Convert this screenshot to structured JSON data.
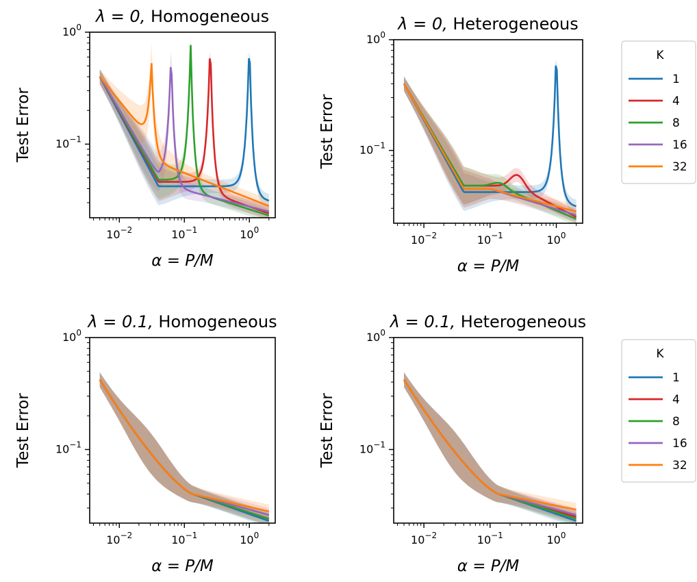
{
  "colors": {
    "K1": "#1f77b4",
    "K4": "#d62728",
    "K8": "#2ca02c",
    "K16": "#9467bd",
    "K32": "#ff7f0e"
  },
  "common": {
    "ylabel": "Test Error",
    "xlabel_main": "α = P/M",
    "xticks": [
      {
        "v": 0.01,
        "base": "10",
        "exp": "−2"
      },
      {
        "v": 0.1,
        "base": "10",
        "exp": "−1"
      },
      {
        "v": 1,
        "base": "10",
        "exp": "0"
      }
    ],
    "yticks": [
      {
        "v": 0.1,
        "base": "10",
        "exp": "−1"
      },
      {
        "v": 1,
        "base": "10",
        "exp": "0"
      }
    ],
    "xlim": [
      0.0035,
      2.5
    ],
    "yscale": "log",
    "xscale": "log"
  },
  "legend": {
    "title": "K",
    "entries": [
      "1",
      "4",
      "8",
      "16",
      "32"
    ]
  },
  "chart_data": [
    {
      "type": "line",
      "id": "p00",
      "title_lambda": "λ = 0,",
      "title_text": "Homogeneous",
      "xlabel": "α = P/M",
      "ylabel": "Test Error",
      "ylim": [
        0.022,
        1.0
      ],
      "series": [
        {
          "name": "1",
          "peak": 1.0,
          "peak_val": 0.88,
          "plateau": 0.042,
          "end": 0.031,
          "color_key": "K1"
        },
        {
          "name": "4",
          "peak": 0.25,
          "peak_val": 0.85,
          "plateau": 0.046,
          "end": 0.024,
          "color_key": "K4"
        },
        {
          "name": "8",
          "peak": 0.125,
          "peak_val": 0.8,
          "plateau": 0.048,
          "end": 0.023,
          "color_key": "K8"
        },
        {
          "name": "16",
          "peak": 0.0625,
          "peak_val": 0.67,
          "plateau": 0.052,
          "end": 0.025,
          "color_key": "K16"
        },
        {
          "name": "32",
          "peak": 0.03125,
          "peak_val": 0.55,
          "plateau": 0.09,
          "end": 0.028,
          "color_key": "K32"
        }
      ]
    },
    {
      "type": "line",
      "id": "p01",
      "title_lambda": "λ = 0,",
      "title_text": "Heterogeneous",
      "xlabel": "α = P/M",
      "ylabel": "Test Error",
      "ylim": [
        0.022,
        1.0
      ],
      "series": [
        {
          "name": "1",
          "peak": 1.0,
          "peak_val": 0.88,
          "plateau": 0.042,
          "end": 0.031,
          "color_key": "K1"
        },
        {
          "name": "4",
          "bump": 0.25,
          "bump_val": 0.06,
          "plateau": 0.048,
          "end": 0.025,
          "color_key": "K4"
        },
        {
          "name": "8",
          "bump": 0.13,
          "bump_val": 0.051,
          "plateau": 0.048,
          "end": 0.024,
          "color_key": "K8"
        },
        {
          "name": "16",
          "plateau": 0.045,
          "end": 0.026,
          "color_key": "K16"
        },
        {
          "name": "32",
          "plateau": 0.045,
          "end": 0.028,
          "color_key": "K32"
        }
      ]
    },
    {
      "type": "line",
      "id": "p10",
      "title_lambda": "λ = 0.1,",
      "title_text": "Homogeneous",
      "xlabel": "α = P/M",
      "ylabel": "Test Error",
      "ylim": [
        0.022,
        1.0
      ],
      "series": [
        {
          "name": "1",
          "end": 0.023,
          "color_key": "K1"
        },
        {
          "name": "4",
          "end": 0.024,
          "color_key": "K4"
        },
        {
          "name": "8",
          "end": 0.024,
          "color_key": "K8"
        },
        {
          "name": "16",
          "end": 0.026,
          "color_key": "K16"
        },
        {
          "name": "32",
          "end": 0.028,
          "color_key": "K32"
        }
      ]
    },
    {
      "type": "line",
      "id": "p11",
      "title_lambda": "λ = 0.1,",
      "title_text": "Heterogeneous",
      "xlabel": "α = P/M",
      "ylabel": "Test Error",
      "ylim": [
        0.022,
        1.0
      ],
      "series": [
        {
          "name": "1",
          "end": 0.023,
          "color_key": "K1"
        },
        {
          "name": "4",
          "end": 0.025,
          "color_key": "K4"
        },
        {
          "name": "8",
          "end": 0.024,
          "color_key": "K8"
        },
        {
          "name": "16",
          "end": 0.026,
          "color_key": "K16"
        },
        {
          "name": "32",
          "end": 0.029,
          "color_key": "K32"
        }
      ]
    }
  ]
}
